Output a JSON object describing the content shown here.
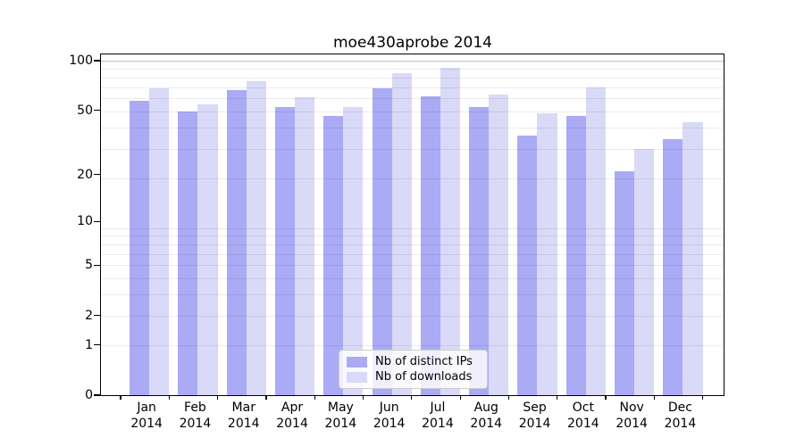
{
  "chart_data": {
    "type": "bar",
    "title": "moe430aprobe 2014",
    "categories": [
      "Jan",
      "Feb",
      "Mar",
      "Apr",
      "May",
      "Jun",
      "Jul",
      "Aug",
      "Sep",
      "Oct",
      "Nov",
      "Dec"
    ],
    "year": "2014",
    "series": [
      {
        "name": "Nb of distinct IPs",
        "color": "#aaaaf5",
        "values": [
          57,
          49,
          66,
          52,
          46,
          68,
          61,
          52,
          35,
          46,
          21,
          33
        ]
      },
      {
        "name": "Nb of downloads",
        "color": "#d9d9f8",
        "values": [
          68,
          54,
          75,
          60,
          52,
          84,
          90,
          62,
          48,
          69,
          29,
          42
        ]
      }
    ],
    "y_axis": {
      "scale": "log10(value+1)",
      "ticks": [
        {
          "label": "100",
          "value": 100
        },
        {
          "label": "50",
          "value": 50
        },
        {
          "label": "20",
          "value": 20
        },
        {
          "label": "10",
          "value": 10
        },
        {
          "label": "5",
          "value": 5
        },
        {
          "label": "2",
          "value": 2
        },
        {
          "label": "1",
          "value": 1
        },
        {
          "label": "0",
          "value": 0
        }
      ],
      "top_value": 108,
      "major_gridlines": [
        100
      ],
      "minor_gridlines": [
        1,
        2,
        3,
        4,
        5,
        6,
        7,
        8,
        9,
        19,
        29,
        39,
        49,
        59,
        69,
        79,
        89,
        99
      ]
    },
    "x_axis": {
      "boundary_tick_count": 13
    },
    "legend_position": "bottom-center",
    "grid": true
  },
  "colors": {
    "background": "#ffffff",
    "spine": "#000000",
    "grid_minor": "#ebebeb",
    "grid_major": "#c9c9c9"
  }
}
